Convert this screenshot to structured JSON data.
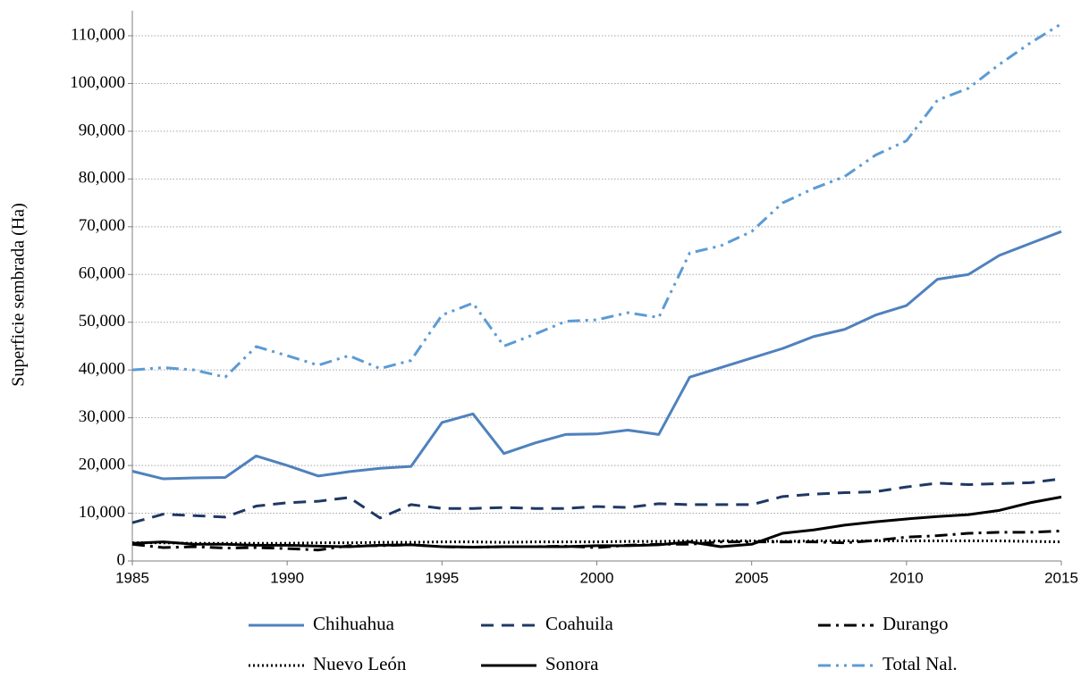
{
  "chart_data": {
    "type": "line",
    "ylabel": "Superficie sembrada (Ha)",
    "x": [
      1985,
      1986,
      1987,
      1988,
      1989,
      1990,
      1991,
      1992,
      1993,
      1994,
      1995,
      1996,
      1997,
      1998,
      1999,
      2000,
      2001,
      2002,
      2003,
      2004,
      2005,
      2006,
      2007,
      2008,
      2009,
      2010,
      2011,
      2012,
      2013,
      2014,
      2015
    ],
    "xlim": [
      1985,
      2015
    ],
    "xticks": [
      1985,
      1990,
      1995,
      2000,
      2005,
      2010,
      2015
    ],
    "ylim": [
      0,
      110000
    ],
    "yticks": [
      0,
      {
        "value": 10000,
        "label": "10,000"
      },
      {
        "value": 20000,
        "label": "20,000"
      },
      {
        "value": 30000,
        "label": "30,000"
      },
      {
        "value": 40000,
        "label": "40,000"
      },
      {
        "value": 50000,
        "label": "50,000"
      },
      {
        "value": 60000,
        "label": "60,000"
      },
      {
        "value": 70000,
        "label": "70,000"
      },
      {
        "value": 80000,
        "label": "80,000"
      },
      {
        "value": 90000,
        "label": "90,000"
      },
      {
        "value": 100000,
        "label": "100,000"
      },
      {
        "value": 110000,
        "label": "110,000"
      }
    ],
    "grid": true,
    "legend": "bottom",
    "series": [
      {
        "name": "Chihuahua",
        "color": "#4f81bd",
        "dash": "solid",
        "values": [
          18800,
          17200,
          17400,
          17500,
          22000,
          20000,
          17800,
          18700,
          19400,
          19800,
          29000,
          30800,
          22500,
          24700,
          26500,
          26600,
          27400,
          26500,
          38500,
          40500,
          42500,
          44500,
          47000,
          48500,
          51500,
          53500,
          59000,
          60000,
          64000,
          66500,
          69000
        ]
      },
      {
        "name": "Coahuila",
        "color": "#1f3864",
        "dash": "dash",
        "values": [
          8000,
          9800,
          9500,
          9200,
          11500,
          12200,
          12500,
          13300,
          9000,
          11800,
          11000,
          11000,
          11200,
          11000,
          11000,
          11400,
          11200,
          12000,
          11800,
          11800,
          11800,
          13500,
          14000,
          14300,
          14500,
          15500,
          16300,
          16000,
          16200,
          16400,
          17200
        ]
      },
      {
        "name": "Durango",
        "color": "#000000",
        "dash": "dashdot",
        "values": [
          3500,
          2800,
          3000,
          2700,
          2800,
          2600,
          2300,
          3200,
          3200,
          3400,
          3000,
          2900,
          3000,
          3000,
          3100,
          2800,
          3300,
          3500,
          3500,
          4000,
          4000,
          4000,
          4000,
          3800,
          4300,
          5000,
          5300,
          5800,
          6000,
          6000,
          6300
        ]
      },
      {
        "name": "Nuevo León",
        "color": "#000000",
        "dash": "dot",
        "values": [
          3800,
          3800,
          3700,
          3700,
          3700,
          3700,
          3800,
          3800,
          3900,
          3900,
          4000,
          4000,
          3900,
          4000,
          4000,
          4000,
          4100,
          4100,
          4200,
          4200,
          4200,
          4100,
          4200,
          4200,
          4200,
          4200,
          4200,
          4200,
          4200,
          4100,
          4000
        ]
      },
      {
        "name": "Sonora",
        "color": "#000000",
        "dash": "solid",
        "values": [
          3700,
          4000,
          3500,
          3500,
          3300,
          3300,
          3100,
          3000,
          3300,
          3400,
          3000,
          2900,
          3000,
          3000,
          3000,
          3200,
          3200,
          3400,
          4000,
          3000,
          3500,
          5800,
          6500,
          7500,
          8200,
          8800,
          9300,
          9700,
          10600,
          12200,
          13400
        ]
      },
      {
        "name": "Total Nal.",
        "color": "#5b9bd5",
        "dash": "dashdotdot",
        "values": [
          40000,
          40500,
          40000,
          38500,
          44900,
          43000,
          41000,
          43000,
          40300,
          42000,
          51500,
          54000,
          45000,
          47500,
          50200,
          50500,
          52000,
          51000,
          64500,
          66000,
          69000,
          75000,
          78000,
          80500,
          85000,
          88000,
          96500,
          99000,
          104000,
          108500,
          112500
        ]
      }
    ]
  }
}
